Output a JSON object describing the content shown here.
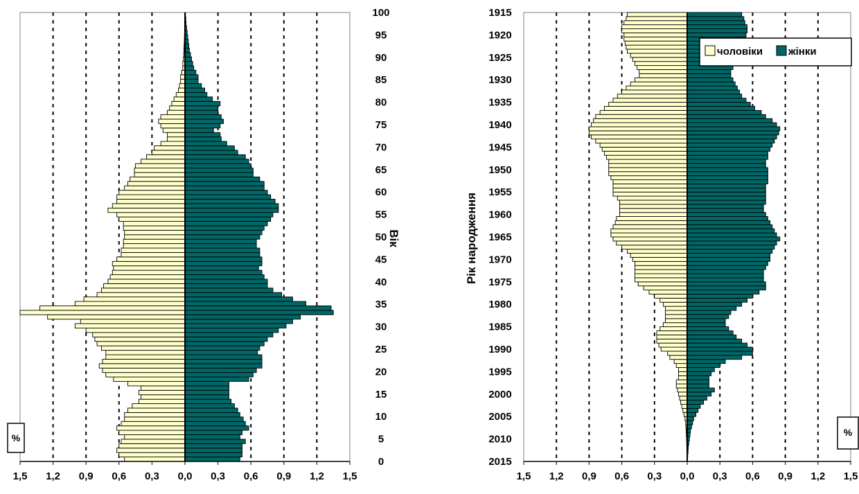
{
  "colors": {
    "male_fill": "#FFFFCC",
    "female_fill": "#006666",
    "bar_stroke": "#000000",
    "background": "#FFFFFF"
  },
  "chart_data": [
    {
      "type": "bar",
      "orientation": "horizontal-pyramid",
      "title": "",
      "xlabel": "",
      "ylabel": "Вік",
      "unit_label": "%",
      "xlim": [
        -1.5,
        1.5
      ],
      "x_ticks": [
        "1,5",
        "1,2",
        "0,9",
        "0,6",
        "0,3",
        "0,0",
        "0,3",
        "0,6",
        "0,9",
        "1,2",
        "1,5"
      ],
      "y_range": [
        0,
        100
      ],
      "y_ticks": [
        "0",
        "5",
        "10",
        "15",
        "20",
        "25",
        "30",
        "35",
        "40",
        "45",
        "50",
        "55",
        "60",
        "65",
        "70",
        "75",
        "80",
        "85",
        "90",
        "95",
        "100"
      ],
      "grid": "vertical dashed",
      "series": [
        {
          "key": "male",
          "values": [
            0.55,
            0.6,
            0.62,
            0.6,
            0.58,
            0.55,
            0.6,
            0.62,
            0.58,
            0.55,
            0.55,
            0.52,
            0.48,
            0.42,
            0.4,
            0.42,
            0.4,
            0.52,
            0.65,
            0.72,
            0.75,
            0.78,
            0.75,
            0.72,
            0.72,
            0.76,
            0.8,
            0.82,
            0.84,
            0.9,
            1.0,
            0.95,
            1.25,
            1.5,
            1.32,
            1.0,
            0.92,
            0.8,
            0.76,
            0.74,
            0.7,
            0.68,
            0.66,
            0.65,
            0.66,
            0.62,
            0.58,
            0.58,
            0.56,
            0.56,
            0.55,
            0.55,
            0.56,
            0.56,
            0.6,
            0.62,
            0.7,
            0.66,
            0.62,
            0.62,
            0.6,
            0.55,
            0.52,
            0.5,
            0.46,
            0.46,
            0.45,
            0.4,
            0.35,
            0.3,
            0.28,
            0.22,
            0.16,
            0.16,
            0.2,
            0.22,
            0.24,
            0.22,
            0.16,
            0.14,
            0.12,
            0.1,
            0.08,
            0.06,
            0.05,
            0.04,
            0.04,
            0.03,
            0.02,
            0.02,
            0.015,
            0.012,
            0.01,
            0.008,
            0.006,
            0.005,
            0.004,
            0.003,
            0.002,
            0.002,
            0.001
          ]
        },
        {
          "key": "female",
          "values": [
            0.5,
            0.52,
            0.52,
            0.52,
            0.55,
            0.5,
            0.52,
            0.58,
            0.55,
            0.53,
            0.5,
            0.48,
            0.45,
            0.42,
            0.4,
            0.4,
            0.4,
            0.4,
            0.58,
            0.62,
            0.65,
            0.7,
            0.7,
            0.7,
            0.66,
            0.68,
            0.72,
            0.75,
            0.8,
            0.85,
            0.92,
            0.98,
            1.05,
            1.35,
            1.33,
            1.1,
            0.98,
            0.88,
            0.8,
            0.75,
            0.75,
            0.72,
            0.7,
            0.67,
            0.7,
            0.7,
            0.68,
            0.68,
            0.65,
            0.65,
            0.68,
            0.7,
            0.72,
            0.75,
            0.78,
            0.8,
            0.85,
            0.85,
            0.82,
            0.78,
            0.75,
            0.72,
            0.72,
            0.68,
            0.62,
            0.62,
            0.6,
            0.58,
            0.55,
            0.48,
            0.45,
            0.38,
            0.33,
            0.32,
            0.26,
            0.32,
            0.35,
            0.33,
            0.3,
            0.3,
            0.32,
            0.25,
            0.2,
            0.18,
            0.15,
            0.12,
            0.12,
            0.1,
            0.08,
            0.07,
            0.06,
            0.05,
            0.04,
            0.035,
            0.03,
            0.025,
            0.02,
            0.015,
            0.01,
            0.008,
            0.005
          ]
        }
      ]
    },
    {
      "type": "bar",
      "orientation": "horizontal-pyramid",
      "title": "",
      "xlabel": "",
      "ylabel": "Рік народження",
      "unit_label": "%",
      "xlim": [
        -1.5,
        1.5
      ],
      "x_ticks": [
        "1,5",
        "1,2",
        "0,9",
        "0,6",
        "0,3",
        "0,0",
        "0,3",
        "0,6",
        "0,9",
        "1,2",
        "1,5"
      ],
      "y_range": [
        1915,
        2015
      ],
      "y_ticks": [
        "1915",
        "1920",
        "1925",
        "1930",
        "1935",
        "1940",
        "1945",
        "1950",
        "1955",
        "1960",
        "1965",
        "1970",
        "1975",
        "1980",
        "1985",
        "1990",
        "1995",
        "2000",
        "2005",
        "2010",
        "2015"
      ],
      "grid": "vertical dashed",
      "legend": {
        "position": "top-right",
        "items": [
          {
            "key": "male",
            "label": "чоловіки"
          },
          {
            "key": "female",
            "label": "жінки"
          }
        ]
      },
      "series": [
        {
          "key": "male",
          "values": [
            0.001,
            0.002,
            0.003,
            0.004,
            0.005,
            0.006,
            0.008,
            0.01,
            0.012,
            0.015,
            0.02,
            0.03,
            0.04,
            0.05,
            0.06,
            0.07,
            0.08,
            0.09,
            0.1,
            0.1,
            0.08,
            0.08,
            0.08,
            0.1,
            0.12,
            0.16,
            0.18,
            0.24,
            0.26,
            0.28,
            0.28,
            0.28,
            0.25,
            0.22,
            0.2,
            0.2,
            0.2,
            0.2,
            0.22,
            0.25,
            0.3,
            0.35,
            0.4,
            0.45,
            0.48,
            0.48,
            0.48,
            0.48,
            0.48,
            0.5,
            0.52,
            0.55,
            0.6,
            0.65,
            0.68,
            0.7,
            0.7,
            0.68,
            0.66,
            0.65,
            0.62,
            0.62,
            0.62,
            0.62,
            0.64,
            0.68,
            0.68,
            0.68,
            0.68,
            0.7,
            0.72,
            0.72,
            0.72,
            0.72,
            0.74,
            0.76,
            0.78,
            0.8,
            0.84,
            0.88,
            0.9,
            0.9,
            0.88,
            0.86,
            0.84,
            0.8,
            0.76,
            0.72,
            0.68,
            0.64,
            0.6,
            0.56,
            0.52,
            0.48,
            0.44,
            0.44,
            0.46,
            0.48,
            0.5,
            0.52,
            0.55,
            0.56,
            0.57,
            0.58,
            0.58,
            0.6,
            0.6,
            0.58,
            0.56,
            0.55
          ]
        },
        {
          "key": "female",
          "values": [
            0.003,
            0.005,
            0.008,
            0.01,
            0.015,
            0.02,
            0.025,
            0.03,
            0.04,
            0.05,
            0.06,
            0.08,
            0.1,
            0.12,
            0.15,
            0.18,
            0.22,
            0.25,
            0.2,
            0.2,
            0.2,
            0.22,
            0.25,
            0.3,
            0.35,
            0.5,
            0.6,
            0.6,
            0.55,
            0.5,
            0.45,
            0.42,
            0.38,
            0.35,
            0.35,
            0.38,
            0.4,
            0.45,
            0.5,
            0.55,
            0.6,
            0.66,
            0.72,
            0.72,
            0.7,
            0.7,
            0.7,
            0.72,
            0.74,
            0.76,
            0.76,
            0.78,
            0.8,
            0.82,
            0.85,
            0.82,
            0.8,
            0.78,
            0.76,
            0.74,
            0.72,
            0.7,
            0.7,
            0.72,
            0.72,
            0.72,
            0.72,
            0.72,
            0.74,
            0.74,
            0.74,
            0.74,
            0.72,
            0.72,
            0.74,
            0.74,
            0.76,
            0.78,
            0.8,
            0.82,
            0.84,
            0.85,
            0.82,
            0.78,
            0.72,
            0.68,
            0.62,
            0.58,
            0.54,
            0.5,
            0.48,
            0.46,
            0.44,
            0.42,
            0.4,
            0.4,
            0.42,
            0.44,
            0.46,
            0.48,
            0.5,
            0.52,
            0.52,
            0.54,
            0.54,
            0.55,
            0.55,
            0.53,
            0.52,
            0.5
          ]
        }
      ]
    }
  ]
}
